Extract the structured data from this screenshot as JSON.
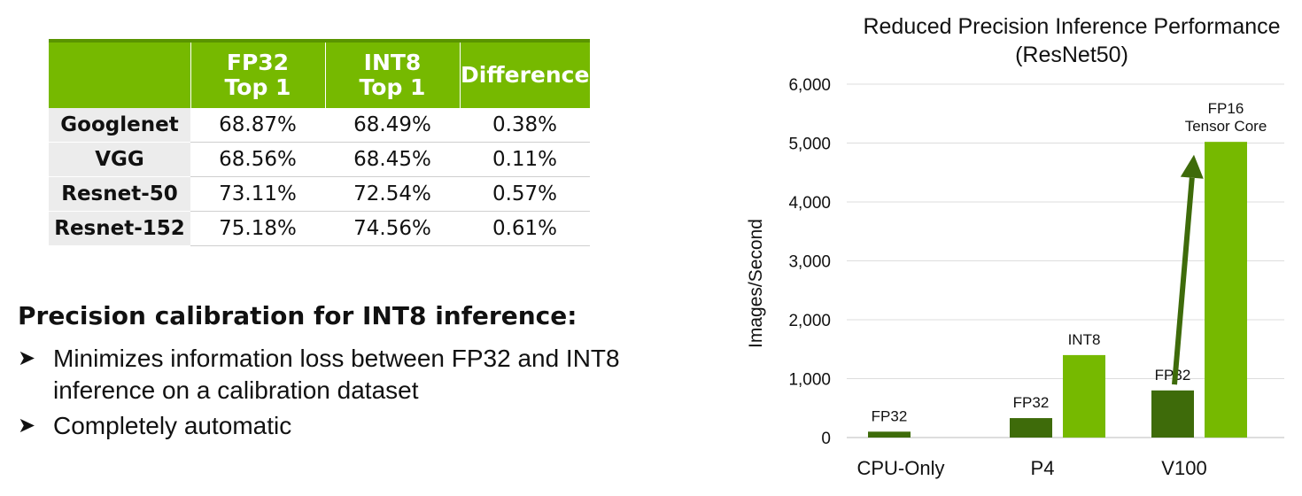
{
  "table": {
    "headers": [
      [
        ""
      ],
      [
        "FP32",
        "Top 1"
      ],
      [
        "INT8",
        "Top 1"
      ],
      [
        "Difference"
      ]
    ],
    "rows": [
      {
        "model": "Googlenet",
        "fp32": "68.87%",
        "int8": "68.49%",
        "diff": "0.38%"
      },
      {
        "model": "VGG",
        "fp32": "68.56%",
        "int8": "68.45%",
        "diff": "0.11%"
      },
      {
        "model": "Resnet-50",
        "fp32": "73.11%",
        "int8": "72.54%",
        "diff": "0.57%"
      },
      {
        "model": "Resnet-152",
        "fp32": "75.18%",
        "int8": "74.56%",
        "diff": "0.61%"
      }
    ],
    "header_color": "#76b900"
  },
  "calibration": {
    "title": "Precision calibration for INT8 inference:",
    "bullet_icon": "arrowhead-bullet-icon",
    "bullets": [
      "Minimizes information loss between FP32 and INT8 inference on a calibration dataset",
      "Completely automatic"
    ]
  },
  "chart_data": {
    "type": "bar",
    "title": "Reduced Precision Inference Performance",
    "subtitle": "(ResNet50)",
    "xlabel": "",
    "ylabel": "Images/Second",
    "ylim": [
      0,
      6000
    ],
    "yticks": [
      0,
      1000,
      2000,
      3000,
      4000,
      5000,
      6000
    ],
    "ytick_labels": [
      "0",
      "1,000",
      "2,000",
      "3,000",
      "4,000",
      "5,000",
      "6,000"
    ],
    "grid": true,
    "categories": [
      "CPU-Only",
      "P4",
      "V100"
    ],
    "bars": [
      {
        "category": "CPU-Only",
        "label": [
          "FP32"
        ],
        "value": 100,
        "color": "#3e6b0a",
        "slot": 0
      },
      {
        "category": "P4",
        "label": [
          "FP32"
        ],
        "value": 330,
        "color": "#3e6b0a",
        "slot": 0
      },
      {
        "category": "P4",
        "label": [
          "INT8"
        ],
        "value": 1400,
        "color": "#76b900",
        "slot": 1
      },
      {
        "category": "V100",
        "label": [
          "FP32"
        ],
        "value": 800,
        "color": "#3e6b0a",
        "slot": 0
      },
      {
        "category": "V100",
        "label": [
          "FP16",
          "Tensor Core"
        ],
        "value": 5020,
        "color": "#76b900",
        "slot": 1
      }
    ],
    "arrow": {
      "category": "V100",
      "from_value": 900,
      "to_value": 4800,
      "color": "#3e6b0a"
    }
  }
}
